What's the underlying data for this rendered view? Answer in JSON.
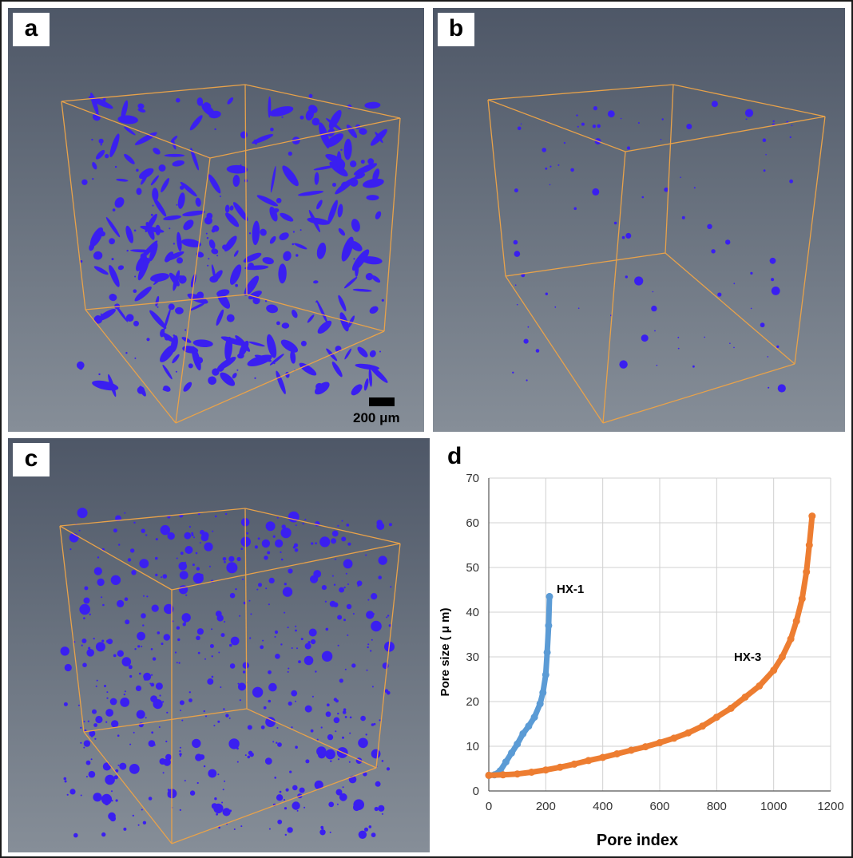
{
  "figure": {
    "panels": [
      {
        "letter": "a",
        "scale_bar_label": "200 μm",
        "pore_color": "#3a1ff0",
        "box_color": "#e8a24a"
      },
      {
        "letter": "b",
        "pore_color": "#3a1ff0",
        "box_color": "#e8a24a"
      },
      {
        "letter": "c",
        "pore_color": "#3a1ff0",
        "box_color": "#e8a24a"
      },
      {
        "letter": "d"
      }
    ]
  },
  "chart_data": {
    "type": "scatter",
    "title": "",
    "xlabel": "Pore index",
    "ylabel": "Pore size ( μ m)",
    "xlim": [
      0,
      1200
    ],
    "ylim": [
      0,
      70
    ],
    "xticks": [
      0,
      200,
      400,
      600,
      800,
      1000,
      1200
    ],
    "yticks": [
      0,
      10,
      20,
      30,
      40,
      50,
      60,
      70
    ],
    "grid": true,
    "series": [
      {
        "name": "HX-1",
        "color": "#5b9bd5",
        "x": [
          0,
          20,
          40,
          60,
          80,
          100,
          120,
          140,
          160,
          180,
          190,
          200,
          205,
          210,
          213
        ],
        "y": [
          3.5,
          3.6,
          4.5,
          6.5,
          8.5,
          10.5,
          12.8,
          14.5,
          16.5,
          19.5,
          22,
          26,
          31,
          37,
          43.5
        ]
      },
      {
        "name": "HX-3",
        "color": "#ed7d31",
        "x": [
          0,
          50,
          100,
          150,
          200,
          250,
          300,
          350,
          400,
          450,
          500,
          550,
          600,
          650,
          700,
          750,
          800,
          850,
          900,
          950,
          1000,
          1030,
          1060,
          1080,
          1100,
          1115,
          1125,
          1135
        ],
        "y": [
          3.5,
          3.6,
          3.8,
          4.2,
          4.7,
          5.3,
          6.0,
          6.8,
          7.5,
          8.3,
          9.1,
          9.9,
          10.8,
          11.8,
          13.0,
          14.5,
          16.5,
          18.5,
          21.0,
          23.5,
          27.0,
          30.0,
          34.0,
          38.0,
          43.0,
          49.0,
          55.0,
          61.5
        ]
      }
    ]
  }
}
